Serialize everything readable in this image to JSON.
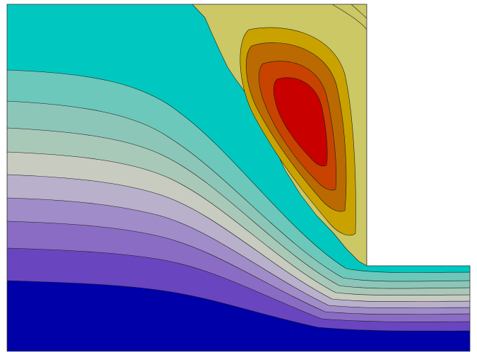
{
  "figure": {
    "kind": "filled-contour-plot",
    "background": "#ffffff",
    "contour_line_color": "#1a1a1a"
  },
  "palette": {
    "level_0_deep_blue": "#0000a8",
    "level_1": "#6a45c0",
    "level_2": "#8a6cc4",
    "level_3": "#a08cc8",
    "level_4": "#b9b0cc",
    "level_5": "#c8cbc0",
    "level_6": "#a8c8b8",
    "level_7": "#8cc6b8",
    "level_8": "#6cc8ba",
    "level_9_teal": "#00c8c0",
    "level_10_khaki": "#cbc865",
    "level_11": "#c9a200",
    "level_12": "#ba6a00",
    "level_13": "#c84300",
    "level_14_peak": "#c80000"
  }
}
